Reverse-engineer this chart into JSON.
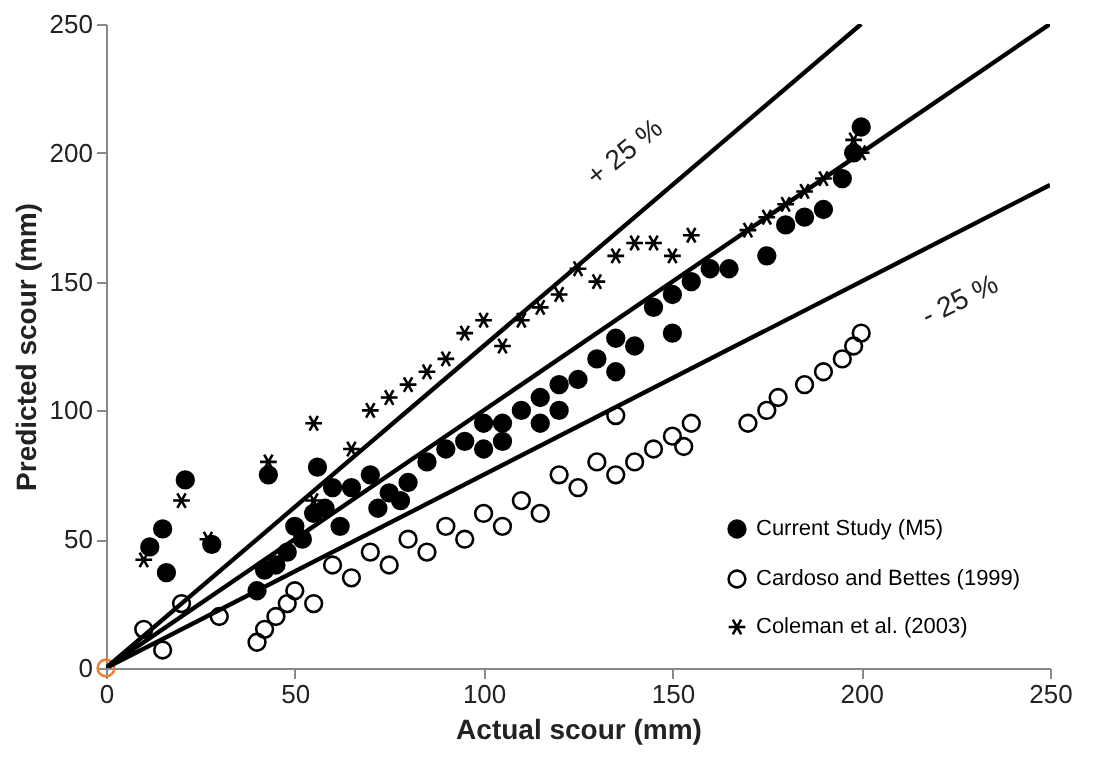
{
  "chart_data": {
    "type": "scatter",
    "xlabel": "Actual scour (mm)",
    "ylabel": "Predicted scour (mm)",
    "xlim": [
      0,
      250
    ],
    "ylim": [
      0,
      250
    ],
    "xticks": [
      0,
      50,
      100,
      150,
      200,
      250
    ],
    "yticks": [
      0,
      50,
      100,
      150,
      200,
      250
    ],
    "grid": false,
    "legend": "bottom right",
    "annotations": [
      "+ 25 %",
      "- 25 %"
    ],
    "series": [
      {
        "name": "Current Study (M5)",
        "color": "#000000",
        "marker": "circle",
        "x": [
          11.6,
          15,
          16,
          21,
          28,
          43,
          56,
          40,
          42,
          45,
          48,
          50,
          52,
          55,
          58,
          60,
          62,
          65,
          70,
          72,
          75,
          78,
          80,
          85,
          90,
          95,
          100,
          100,
          105,
          105,
          110,
          115,
          115,
          120,
          120,
          125,
          130,
          135,
          135,
          140,
          145,
          150,
          150,
          155,
          160,
          165,
          175,
          180,
          185,
          190,
          195,
          198,
          200
        ],
        "values": [
          47,
          54,
          37,
          73,
          48,
          75,
          78,
          30,
          38,
          40,
          45,
          55,
          50,
          60,
          62,
          70,
          55,
          70,
          75,
          62,
          68,
          65,
          72,
          80,
          85,
          88,
          95,
          85,
          95,
          88,
          100,
          105,
          95,
          110,
          100,
          112,
          120,
          128,
          115,
          125,
          140,
          145,
          130,
          150,
          155,
          155,
          160,
          172,
          175,
          178,
          190,
          200,
          210
        ]
      },
      {
        "name": "Cardoso and Bettes (1999)",
        "color": "#000000",
        "marker": "circle",
        "x": [
          10,
          15,
          20,
          30,
          40,
          42,
          45,
          48,
          50,
          55,
          60,
          65,
          70,
          75,
          80,
          85,
          90,
          95,
          100,
          105,
          110,
          115,
          120,
          125,
          130,
          135,
          135,
          140,
          145,
          150,
          153,
          155,
          170,
          175,
          178,
          185,
          190,
          195,
          198,
          200
        ],
        "values": [
          15,
          7,
          25,
          20,
          10,
          15,
          20,
          25,
          30,
          25,
          40,
          35,
          45,
          40,
          50,
          45,
          55,
          50,
          60,
          55,
          65,
          60,
          75,
          70,
          80,
          75,
          98,
          80,
          85,
          90,
          86,
          95,
          95,
          100,
          105,
          110,
          115,
          120,
          125,
          130
        ]
      },
      {
        "name": "Coleman et al. (2003)",
        "color": "#000000",
        "marker": "cross",
        "x": [
          10,
          20,
          27,
          43,
          55,
          55,
          65,
          70,
          75,
          80,
          85,
          90,
          95,
          100,
          105,
          110,
          115,
          120,
          125,
          130,
          135,
          140,
          145,
          150,
          155,
          170,
          175,
          180,
          185,
          190,
          198,
          200
        ],
        "values": [
          42,
          65,
          50,
          80,
          95,
          65,
          85,
          100,
          105,
          110,
          115,
          120,
          130,
          135,
          125,
          135,
          140,
          145,
          155,
          150,
          160,
          165,
          165,
          160,
          168,
          170,
          175,
          180,
          185,
          190,
          205,
          200
        ]
      },
      {
        "color": "#ed7d31",
        "marker": "circle",
        "x": [
          0
        ],
        "values": [
          0
        ]
      },
      {
        "type": "line",
        "color": "#000000",
        "x": [
          0,
          250
        ],
        "values": [
          0,
          250
        ]
      },
      {
        "type": "line",
        "color": "#000000",
        "x": [
          0,
          200
        ],
        "values": [
          0,
          250
        ]
      },
      {
        "type": "line",
        "color": "#000000",
        "x": [
          0,
          250
        ],
        "values": [
          0,
          187.5
        ]
      }
    ]
  }
}
